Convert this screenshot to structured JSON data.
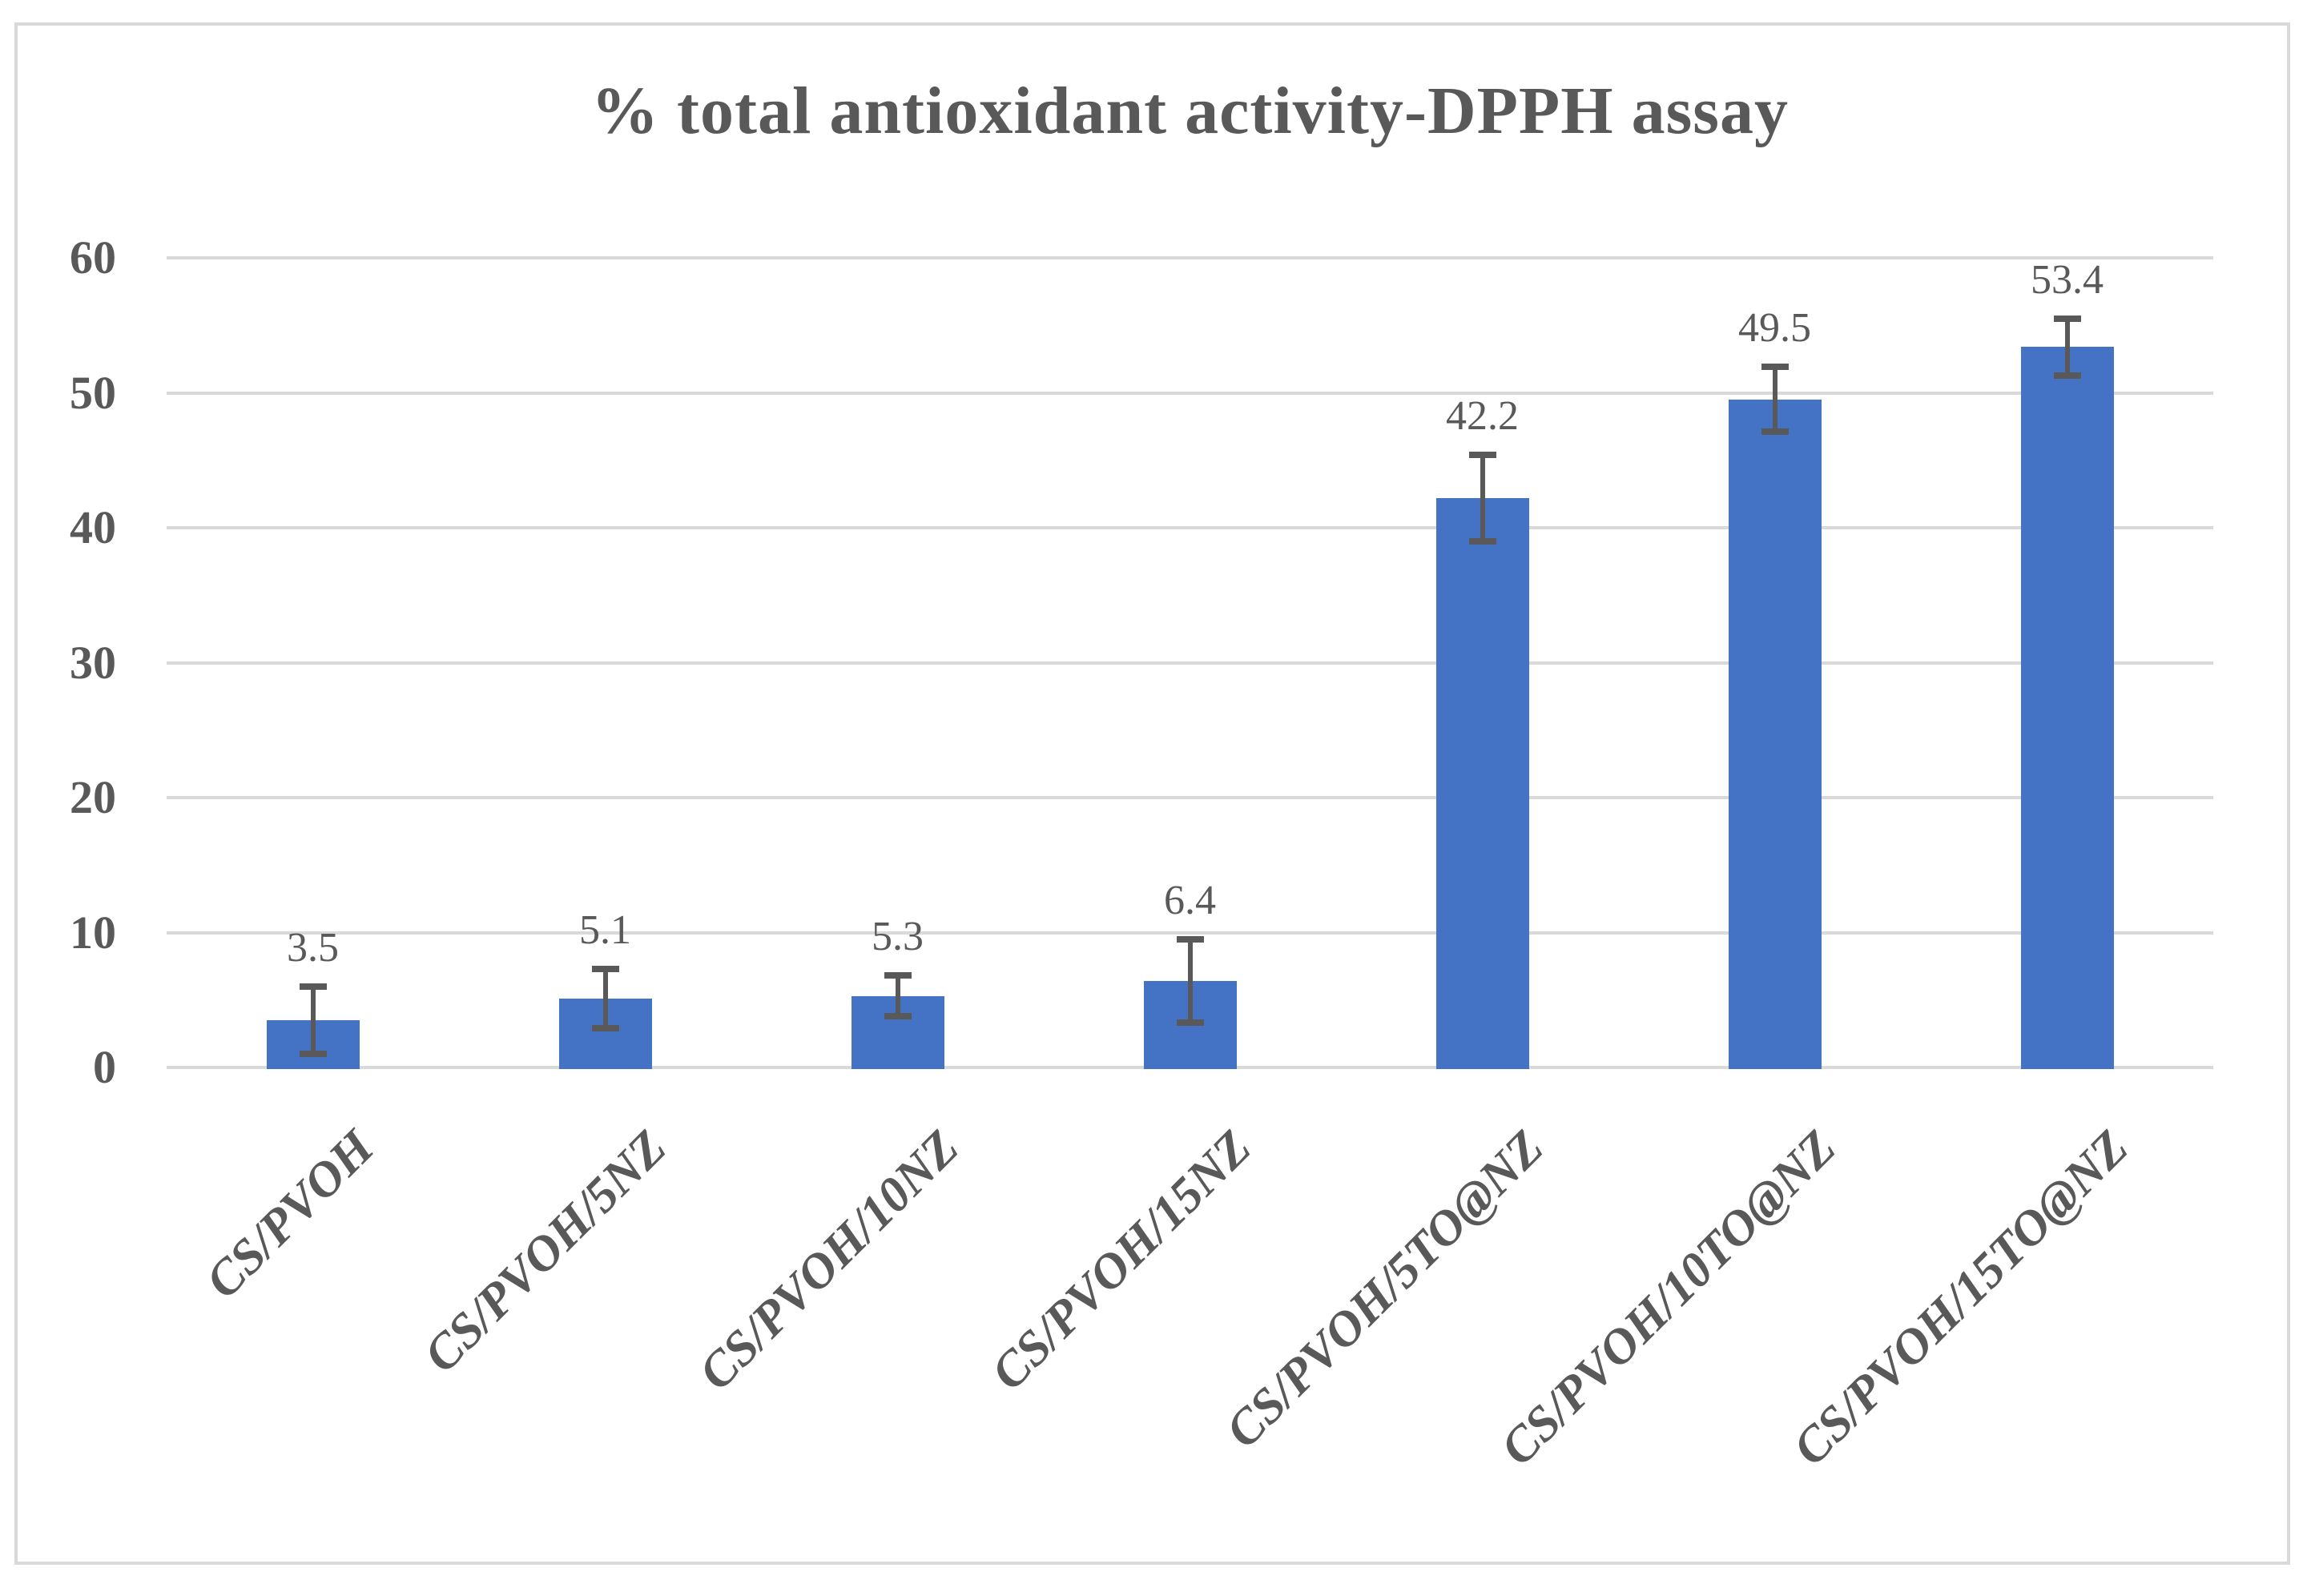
{
  "chart_data": {
    "type": "bar",
    "title": "% total antioxidant activity-DPPH assay",
    "categories": [
      "CS/PVOH",
      "CS/PVOH/5NZ",
      "CS/PVOH/10NZ",
      "CS/PVOH/15NZ",
      "CS/PVOH/5TO@NZ",
      "CS/PVOH/10TO@NZ",
      "CS/PVOH/15TO@NZ"
    ],
    "values": [
      3.5,
      5.1,
      5.3,
      6.4,
      42.2,
      49.5,
      53.4
    ],
    "data_labels": [
      "3.5",
      "5.1",
      "5.3",
      "6.4",
      "42.2",
      "49.5",
      "53.4"
    ],
    "error_bars": [
      2.5,
      2.2,
      1.5,
      3.1,
      3.2,
      2.4,
      2.1
    ],
    "xlabel": "",
    "ylabel": "",
    "ylim": [
      0,
      60
    ],
    "yticks": [
      0,
      10,
      20,
      30,
      40,
      50,
      60
    ],
    "grid": "horizontal",
    "legend": "none",
    "bar_color": "#4472c4",
    "error_bar_color": "#595959",
    "text_color": "#595959",
    "gridline_color": "#d9d9d9"
  }
}
